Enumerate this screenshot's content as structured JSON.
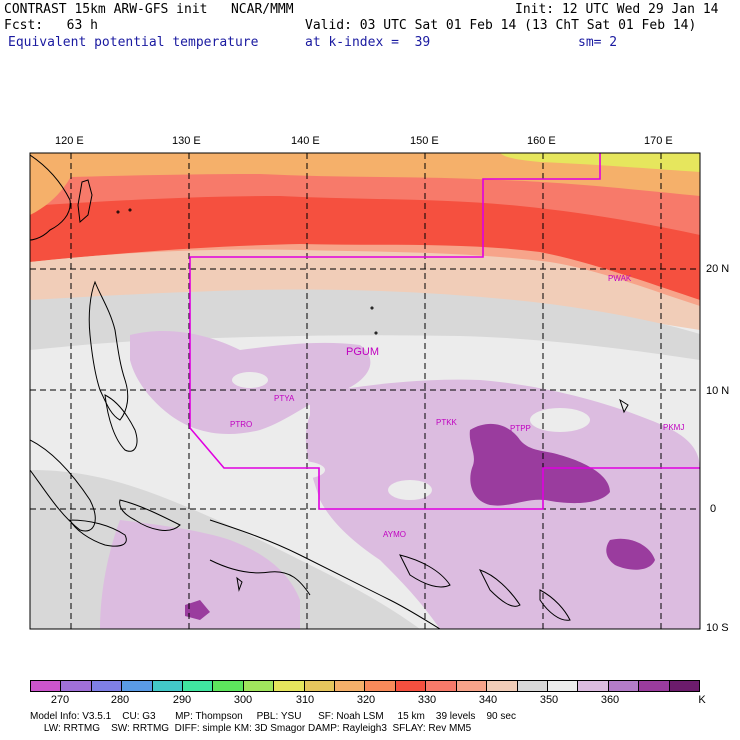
{
  "header": {
    "line1_left": "CONTRAST 15km ARW-GFS init   NCAR/MMM",
    "line1_right": "Init: 12 UTC Wed 29 Jan 14",
    "line2_left": "Fcst:   63 h",
    "line2_right": "Valid: 03 UTC Sat 01 Feb 14 (13 ChT Sat 01 Feb 14)",
    "line3_left": "Equivalent potential temperature",
    "line3_mid": "at k-index =  39",
    "line3_right": "sm= 2"
  },
  "map": {
    "lon_ticks": [
      "120 E",
      "130 E",
      "140 E",
      "150 E",
      "160 E",
      "170 E"
    ],
    "lat_ticks": [
      "20 N",
      "10 N",
      "0",
      "10 S"
    ],
    "stations": [
      "PGUM",
      "PTYA",
      "PTRO",
      "PTKK",
      "PTPP",
      "PKMJ",
      "PWAK",
      "AYMO"
    ]
  },
  "colorbar": {
    "labels": [
      "270",
      "280",
      "290",
      "300",
      "310",
      "320",
      "330",
      "340",
      "350",
      "360"
    ],
    "unit": "K",
    "colors": [
      "#cc55cc",
      "#a070d8",
      "#7f7fe6",
      "#5a9be6",
      "#43c8c8",
      "#40e6a0",
      "#5de65d",
      "#a0e65d",
      "#e6e65d",
      "#e6c65d",
      "#f5b06a",
      "#f88a5a",
      "#f5503f",
      "#f77a6a",
      "#f7a48a",
      "#f1cdb8",
      "#d8d8d8",
      "#ececec",
      "#dcbce0",
      "#b47cc8",
      "#9a3c9e",
      "#6c1c6c"
    ]
  },
  "footer": {
    "line1": "Model Info: V3.5.1    CU: G3       MP: Thompson     PBL: YSU      SF: Noah LSM     15 km    39 levels    90 sec",
    "line2": "     LW: RRTMG    SW: RRTMG  DIFF: simple KM: 3D Smagor DAMP: Rayleigh3  SFLAY: Rev MM5"
  }
}
